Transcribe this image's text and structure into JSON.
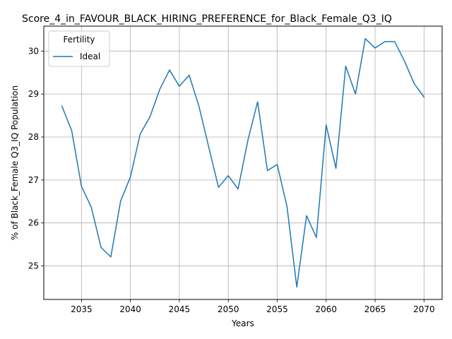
{
  "chart_data": {
    "type": "line",
    "title": "Score_4_in_FAVOUR_BLACK_HIRING_PREFERENCE_for_Black_Female_Q3_IQ",
    "xlabel": "Years",
    "ylabel": "% of Black_Female Q3_IQ Population",
    "xlim": [
      2031.15,
      2071.85
    ],
    "ylim": [
      24.22,
      30.58
    ],
    "xticks": [
      2035,
      2040,
      2045,
      2050,
      2055,
      2060,
      2065,
      2070
    ],
    "yticks": [
      25,
      26,
      27,
      28,
      29,
      30
    ],
    "grid": true,
    "legend": {
      "title": "Fertility",
      "placement": "top-left"
    },
    "series": [
      {
        "name": "Ideal",
        "color": "#1f77b4",
        "x": [
          2033,
          2034,
          2035,
          2036,
          2037,
          2038,
          2039,
          2040,
          2041,
          2042,
          2043,
          2044,
          2045,
          2046,
          2047,
          2048,
          2049,
          2050,
          2051,
          2052,
          2053,
          2054,
          2055,
          2056,
          2057,
          2058,
          2059,
          2060,
          2061,
          2062,
          2063,
          2064,
          2065,
          2066,
          2067,
          2068,
          2069,
          2070
        ],
        "values": [
          28.72,
          28.15,
          26.85,
          26.37,
          25.43,
          25.21,
          26.51,
          27.07,
          28.07,
          28.47,
          29.11,
          29.56,
          29.18,
          29.44,
          28.72,
          27.77,
          26.83,
          27.1,
          26.79,
          27.92,
          28.82,
          27.22,
          27.36,
          26.38,
          24.51,
          26.17,
          25.66,
          28.28,
          27.27,
          29.65,
          29.0,
          30.29,
          30.07,
          30.22,
          30.22,
          29.77,
          29.24,
          28.93
        ]
      }
    ]
  }
}
